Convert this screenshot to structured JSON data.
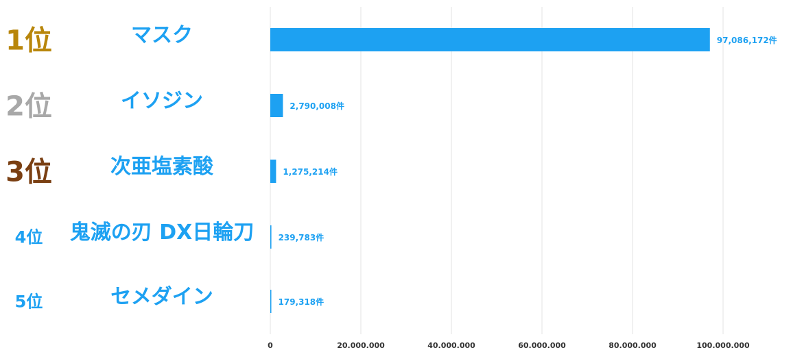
{
  "colors": {
    "bar": "#1da1f2",
    "label": "#1da1f2",
    "grid": "#e3e3e3",
    "tick": "#333333",
    "rank1": "#b8860b",
    "rank2": "#a8a8a8",
    "rank3": "#7a3f12",
    "rank_other": "#1da1f2"
  },
  "chart_data": {
    "type": "bar",
    "orientation": "horizontal",
    "categories": [
      "マスク",
      "イソジン",
      "次亜塩素酸",
      "鬼滅の刃 DX日輪刀",
      "セメダイン"
    ],
    "ranks": [
      "1位",
      "2位",
      "3位",
      "4位",
      "5位"
    ],
    "values": [
      97086172,
      2790008,
      1275214,
      239783,
      179318
    ],
    "value_labels": [
      "97,086,172件",
      "2,790,008件",
      "1,275,214件",
      "239,783件",
      "179,318件"
    ],
    "xlim": [
      0,
      110000000
    ],
    "xticks": [
      0,
      20000000,
      40000000,
      60000000,
      80000000,
      100000000
    ],
    "xtick_labels": [
      "0",
      "20.000.000",
      "40.000.000",
      "60.000.000",
      "80.000.000",
      "100.000.000"
    ],
    "grid": true
  }
}
